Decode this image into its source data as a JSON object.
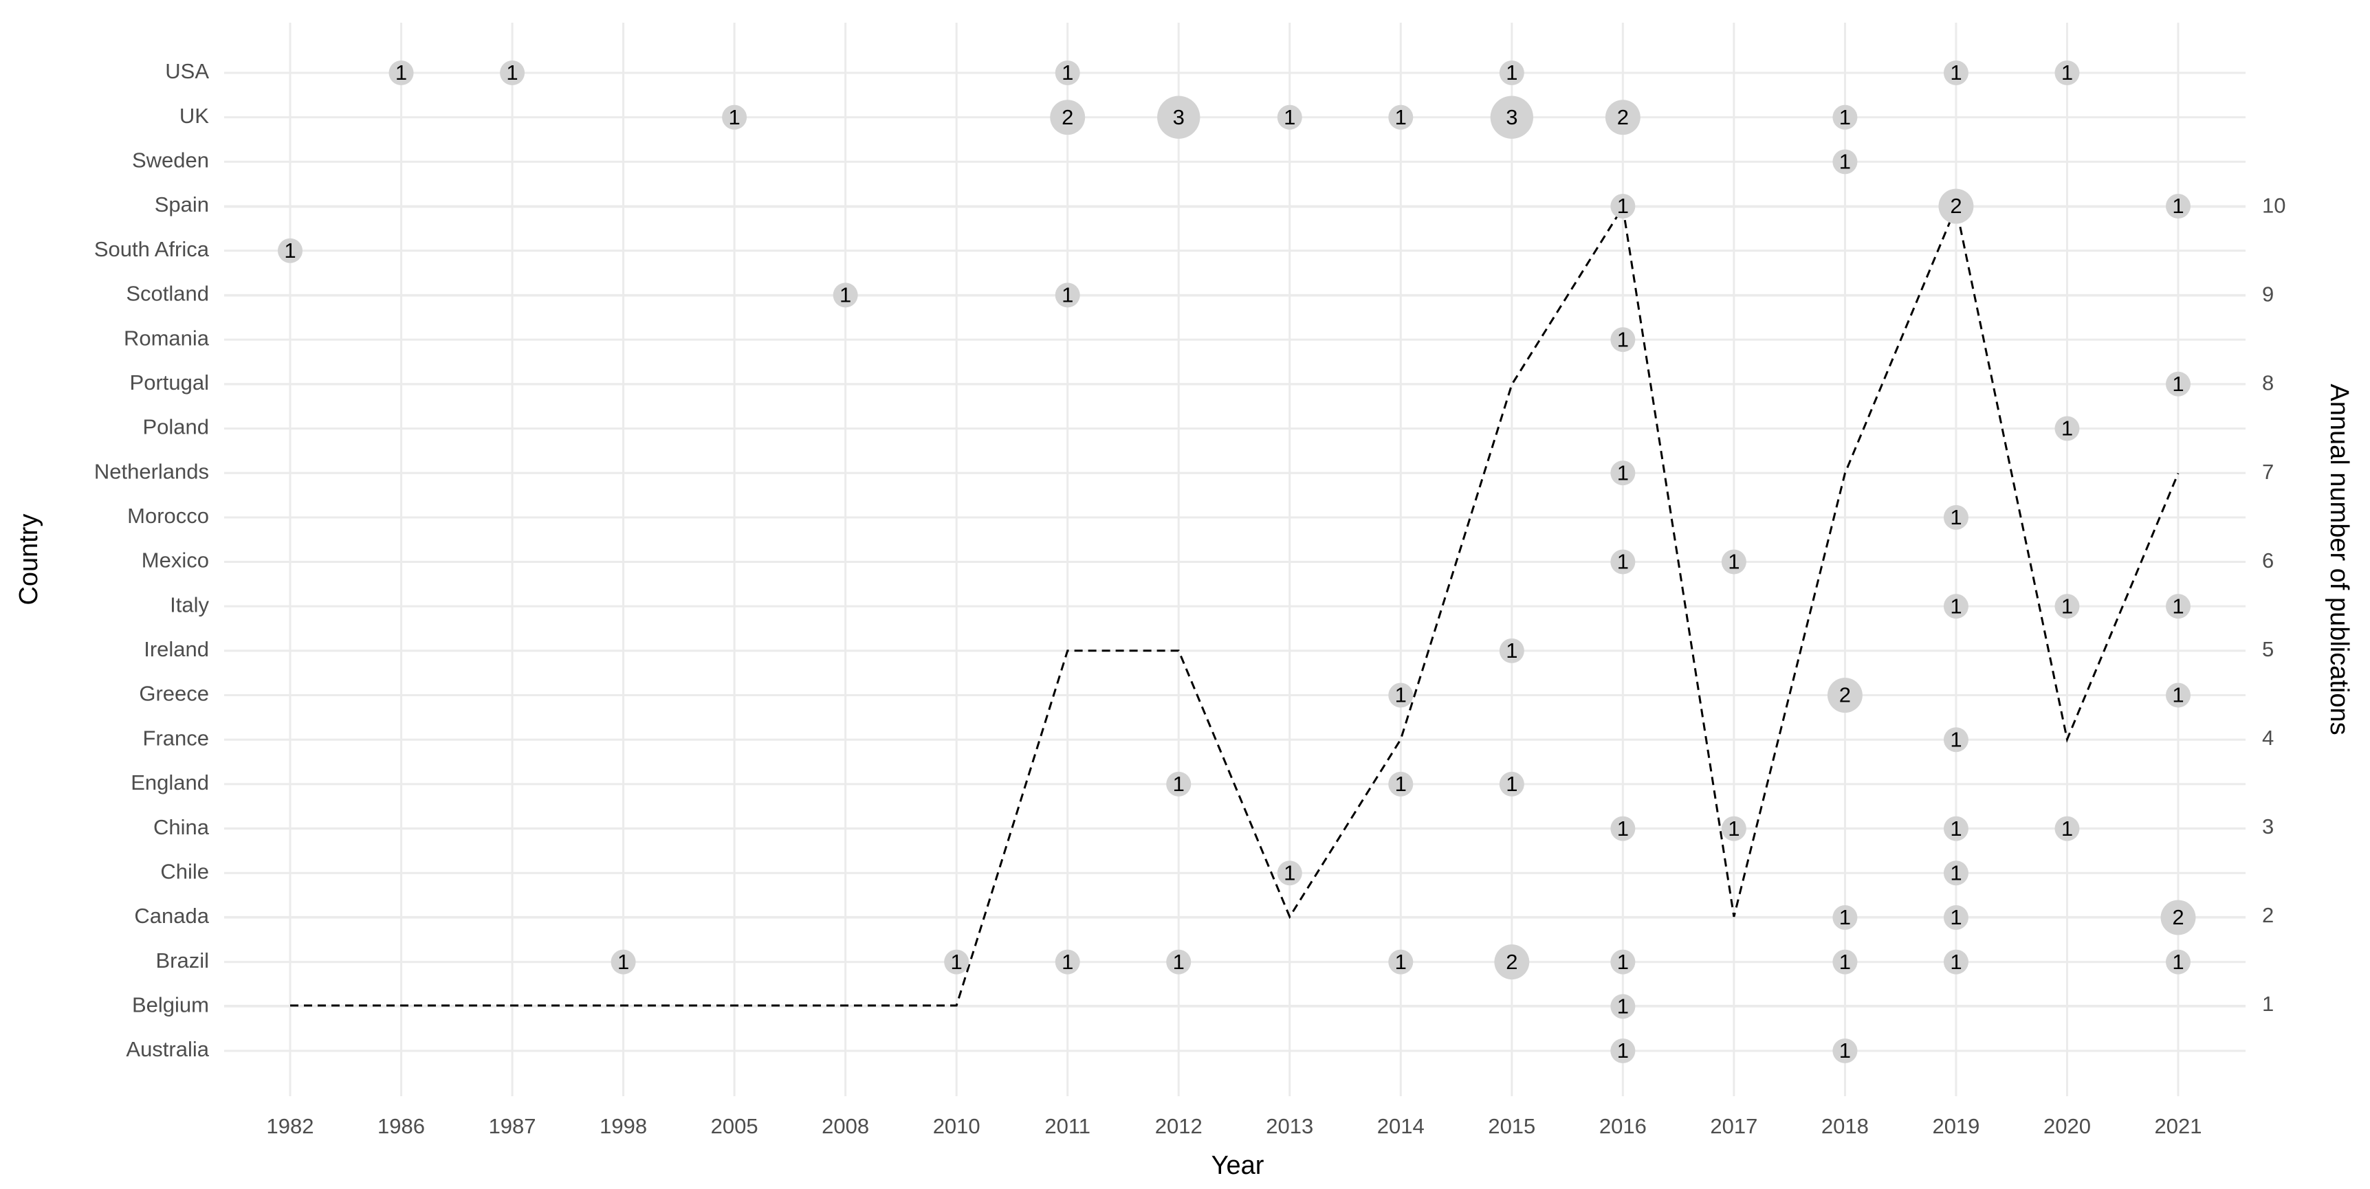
{
  "chart_data": {
    "type": "bubble",
    "x_label": "Year",
    "y_label": "Country",
    "y2_label": "Annual number of publications",
    "categories": [
      "1982",
      "1986",
      "1987",
      "1998",
      "2005",
      "2008",
      "2010",
      "2011",
      "2012",
      "2013",
      "2014",
      "2015",
      "2016",
      "2017",
      "2018",
      "2019",
      "2020",
      "2021"
    ],
    "y_categories": [
      "USA",
      "UK",
      "Sweden",
      "Spain",
      "South Africa",
      "Scotland",
      "Romania",
      "Portugal",
      "Poland",
      "Netherlands",
      "Morocco",
      "Mexico",
      "Italy",
      "Ireland",
      "Greece",
      "France",
      "England",
      "China",
      "Chile",
      "Canada",
      "Brazil",
      "Belgium",
      "Australia"
    ],
    "bubble_color": "#d3d3d3",
    "grid": true,
    "points": [
      {
        "x": "1986",
        "y": "USA",
        "value": 1
      },
      {
        "x": "1987",
        "y": "USA",
        "value": 1
      },
      {
        "x": "2011",
        "y": "USA",
        "value": 1
      },
      {
        "x": "2015",
        "y": "USA",
        "value": 1
      },
      {
        "x": "2019",
        "y": "USA",
        "value": 1
      },
      {
        "x": "2020",
        "y": "USA",
        "value": 1
      },
      {
        "x": "2005",
        "y": "UK",
        "value": 1
      },
      {
        "x": "2011",
        "y": "UK",
        "value": 2
      },
      {
        "x": "2012",
        "y": "UK",
        "value": 3
      },
      {
        "x": "2013",
        "y": "UK",
        "value": 1
      },
      {
        "x": "2014",
        "y": "UK",
        "value": 1
      },
      {
        "x": "2015",
        "y": "UK",
        "value": 3
      },
      {
        "x": "2016",
        "y": "UK",
        "value": 2
      },
      {
        "x": "2018",
        "y": "UK",
        "value": 1
      },
      {
        "x": "2018",
        "y": "Sweden",
        "value": 1
      },
      {
        "x": "2016",
        "y": "Spain",
        "value": 1
      },
      {
        "x": "2019",
        "y": "Spain",
        "value": 2
      },
      {
        "x": "2021",
        "y": "Spain",
        "value": 1
      },
      {
        "x": "1982",
        "y": "South Africa",
        "value": 1
      },
      {
        "x": "2008",
        "y": "Scotland",
        "value": 1
      },
      {
        "x": "2011",
        "y": "Scotland",
        "value": 1
      },
      {
        "x": "2016",
        "y": "Romania",
        "value": 1
      },
      {
        "x": "2021",
        "y": "Portugal",
        "value": 1
      },
      {
        "x": "2020",
        "y": "Poland",
        "value": 1
      },
      {
        "x": "2016",
        "y": "Netherlands",
        "value": 1
      },
      {
        "x": "2019",
        "y": "Morocco",
        "value": 1
      },
      {
        "x": "2016",
        "y": "Mexico",
        "value": 1
      },
      {
        "x": "2017",
        "y": "Mexico",
        "value": 1
      },
      {
        "x": "2019",
        "y": "Italy",
        "value": 1
      },
      {
        "x": "2020",
        "y": "Italy",
        "value": 1
      },
      {
        "x": "2021",
        "y": "Italy",
        "value": 1
      },
      {
        "x": "2015",
        "y": "Ireland",
        "value": 1
      },
      {
        "x": "2014",
        "y": "Greece",
        "value": 1
      },
      {
        "x": "2018",
        "y": "Greece",
        "value": 2
      },
      {
        "x": "2021",
        "y": "Greece",
        "value": 1
      },
      {
        "x": "2019",
        "y": "France",
        "value": 1
      },
      {
        "x": "2012",
        "y": "England",
        "value": 1
      },
      {
        "x": "2014",
        "y": "England",
        "value": 1
      },
      {
        "x": "2015",
        "y": "England",
        "value": 1
      },
      {
        "x": "2016",
        "y": "China",
        "value": 1
      },
      {
        "x": "2017",
        "y": "China",
        "value": 1
      },
      {
        "x": "2019",
        "y": "China",
        "value": 1
      },
      {
        "x": "2020",
        "y": "China",
        "value": 1
      },
      {
        "x": "2013",
        "y": "Chile",
        "value": 1
      },
      {
        "x": "2019",
        "y": "Chile",
        "value": 1
      },
      {
        "x": "2018",
        "y": "Canada",
        "value": 1
      },
      {
        "x": "2019",
        "y": "Canada",
        "value": 1
      },
      {
        "x": "2021",
        "y": "Canada",
        "value": 2
      },
      {
        "x": "1998",
        "y": "Brazil",
        "value": 1
      },
      {
        "x": "2010",
        "y": "Brazil",
        "value": 1
      },
      {
        "x": "2011",
        "y": "Brazil",
        "value": 1
      },
      {
        "x": "2012",
        "y": "Brazil",
        "value": 1
      },
      {
        "x": "2014",
        "y": "Brazil",
        "value": 1
      },
      {
        "x": "2015",
        "y": "Brazil",
        "value": 2
      },
      {
        "x": "2016",
        "y": "Brazil",
        "value": 1
      },
      {
        "x": "2018",
        "y": "Brazil",
        "value": 1
      },
      {
        "x": "2019",
        "y": "Brazil",
        "value": 1
      },
      {
        "x": "2021",
        "y": "Brazil",
        "value": 1
      },
      {
        "x": "2016",
        "y": "Belgium",
        "value": 1
      },
      {
        "x": "2016",
        "y": "Australia",
        "value": 1
      },
      {
        "x": "2018",
        "y": "Australia",
        "value": 1
      }
    ],
    "line": {
      "type": "line",
      "axis": "y2",
      "color": "#000000",
      "dashed": true,
      "values": [
        1,
        1,
        1,
        1,
        1,
        1,
        1,
        5,
        5,
        2,
        4,
        8,
        10,
        2,
        7,
        10,
        4,
        7
      ]
    },
    "y2lim": [
      0,
      12.08
    ],
    "y2ticks": [
      1,
      2,
      3,
      4,
      5,
      6,
      7,
      8,
      9,
      10
    ]
  }
}
